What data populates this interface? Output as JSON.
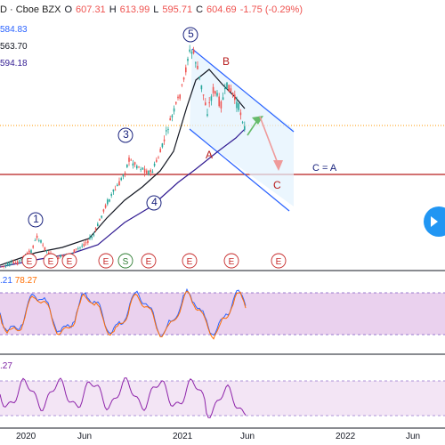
{
  "header": {
    "symbol_suffix": "D · Cboe BZX",
    "open_label": "O",
    "open": "607.31",
    "high_label": "H",
    "high": "613.99",
    "low_label": "L",
    "low": "595.71",
    "close_label": "C",
    "close": "604.69",
    "change": "-1.75 (-0.29%)"
  },
  "moving_averages": {
    "ma1_value": "584.83",
    "ma2_value": "563.70",
    "ma3_value": "594.18"
  },
  "annotations": {
    "wave_1": "1",
    "wave_3": "3",
    "wave_4": "4",
    "wave_5": "5",
    "wave_A": "A",
    "wave_B": "B",
    "wave_C": "C",
    "c_equals_a": "C = A",
    "earnings_marker": "E",
    "split_marker": "S"
  },
  "rsi": {
    "value_1": ".21",
    "value_2": "78.27"
  },
  "cci": {
    "value": ".27"
  },
  "time_axis": {
    "labels": [
      "2020",
      "Jun",
      "2021",
      "Jun",
      "2022",
      "Jun"
    ]
  },
  "colors": {
    "bull": "#26a69a",
    "bear": "#ef5350",
    "channel": "#2962ff",
    "support": "#b71c1c",
    "wave_label": "#1a237e",
    "rsi_band": "#ce93d8",
    "cci_band": "#e1bee7"
  },
  "icons": {
    "side_arrow": "chevron-right-icon"
  }
}
